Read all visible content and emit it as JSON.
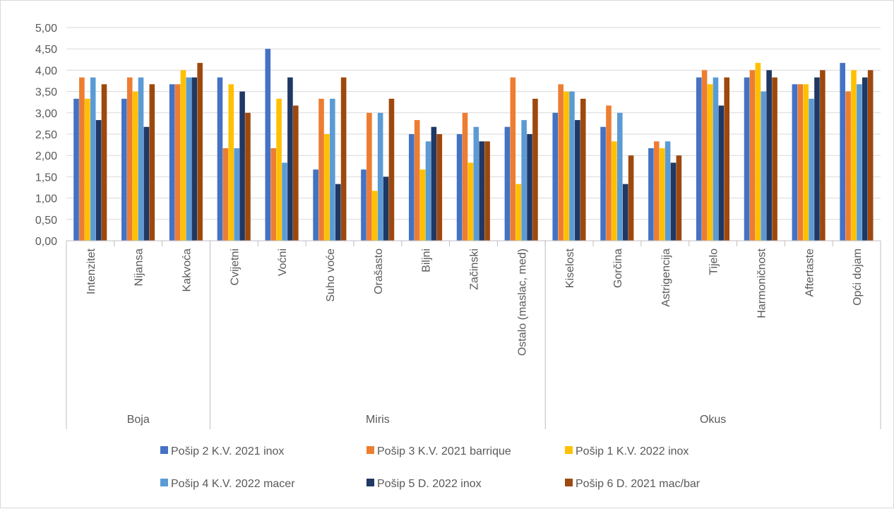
{
  "chart_data": {
    "type": "bar",
    "title": "",
    "xlabel": "",
    "ylabel": "",
    "ylim": [
      0,
      5
    ],
    "yticks": [
      "0,00",
      "0,50",
      "1,00",
      "1,50",
      "2,00",
      "2,50",
      "3,00",
      "3,50",
      "4,00",
      "4,50",
      "5,00"
    ],
    "grid": true,
    "legend_position": "bottom",
    "groups": [
      {
        "label": "Boja",
        "categories": [
          "Intenzitet",
          "Nijansa",
          "Kakvoća"
        ]
      },
      {
        "label": "Miris",
        "categories": [
          "Cvijetni",
          "Voćni",
          "Suho voće",
          "Orašasto",
          "Biljni",
          "Začinski",
          "Ostalo (maslac, med)"
        ]
      },
      {
        "label": "Okus",
        "categories": [
          "Kiselost",
          "Gorčina",
          "Astrigencija",
          "Tijelo",
          "Harmoničnost",
          "Aftertaste",
          "Opći dojam"
        ]
      }
    ],
    "categories": [
      "Intenzitet",
      "Nijansa",
      "Kakvoća",
      "Cvijetni",
      "Voćni",
      "Suho voće",
      "Orašasto",
      "Biljni",
      "Začinski",
      "Ostalo (maslac, med)",
      "Kiselost",
      "Gorčina",
      "Astrigencija",
      "Tijelo",
      "Harmoničnost",
      "Aftertaste",
      "Opći dojam"
    ],
    "series": [
      {
        "name": "Pošip 2 K.V. 2021 inox",
        "color": "#4472c4",
        "values": [
          3.33,
          3.33,
          3.67,
          3.83,
          4.5,
          1.67,
          1.67,
          2.5,
          2.5,
          2.67,
          3.0,
          2.67,
          2.17,
          3.83,
          3.83,
          3.67,
          4.17
        ]
      },
      {
        "name": "Pošip 3 K.V. 2021 barrique",
        "color": "#ed7d31",
        "values": [
          3.83,
          3.83,
          3.67,
          2.17,
          2.17,
          3.33,
          3.0,
          2.83,
          3.0,
          3.83,
          3.67,
          3.17,
          2.33,
          4.0,
          4.0,
          3.67,
          3.5
        ]
      },
      {
        "name": "Pošip 1 K.V. 2022 inox",
        "color": "#ffc000",
        "values": [
          3.33,
          3.5,
          4.0,
          3.67,
          3.33,
          2.5,
          1.17,
          1.67,
          1.83,
          1.33,
          3.5,
          2.33,
          2.17,
          3.67,
          4.17,
          3.67,
          4.0
        ]
      },
      {
        "name": "Pošip 4 K.V. 2022 macer",
        "color": "#5b9bd5",
        "values": [
          3.83,
          3.83,
          3.83,
          2.17,
          1.83,
          3.33,
          3.0,
          2.33,
          2.67,
          2.83,
          3.5,
          3.0,
          2.33,
          3.83,
          3.5,
          3.33,
          3.67
        ]
      },
      {
        "name": "Pošip 5 D. 2022 inox",
        "color": "#1f3864",
        "values": [
          2.83,
          2.67,
          3.83,
          3.5,
          3.83,
          1.33,
          1.5,
          2.67,
          2.33,
          2.5,
          2.83,
          1.33,
          1.83,
          3.17,
          4.0,
          3.83,
          3.83
        ]
      },
      {
        "name": "Pošip 6 D. 2021 mac/bar",
        "color": "#9e480e",
        "values": [
          3.67,
          3.67,
          4.17,
          3.0,
          3.17,
          3.83,
          3.33,
          2.5,
          2.33,
          3.33,
          3.33,
          2.0,
          2.0,
          3.83,
          3.83,
          4.0,
          4.0
        ]
      }
    ]
  }
}
